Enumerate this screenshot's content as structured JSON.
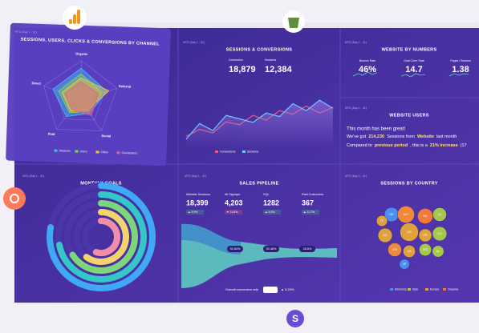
{
  "radar": {
    "title": "SESSIONS, USERS, CLICKS & CONVERSIONS BY CHANNEL",
    "period": "MTD (Day 1 - 31)",
    "axes": [
      "Organic",
      "Referral",
      "Social",
      "Paid",
      "Direct"
    ],
    "rlim": [
      0,
      100
    ],
    "series": [
      {
        "name": "Sessions",
        "color": "#3ec1f3",
        "values": [
          80,
          72,
          45,
          58,
          75
        ]
      },
      {
        "name": "Users",
        "color": "#7ed957",
        "values": [
          65,
          60,
          40,
          45,
          60
        ]
      },
      {
        "name": "Clicks",
        "color": "#f5c842",
        "values": [
          55,
          78,
          35,
          40,
          50
        ]
      },
      {
        "name": "Conversions",
        "color": "#ef5b7a",
        "values": [
          45,
          50,
          52,
          35,
          42
        ]
      }
    ]
  },
  "sessions": {
    "title": "SESSIONS & CONVERSIONS",
    "period": "MTD (Day 1 - 31)",
    "kpis": [
      {
        "label": "Conversion",
        "value": "18,879"
      },
      {
        "label": "Sessions",
        "value": "12,384"
      }
    ],
    "ylim": [
      0,
      100
    ],
    "series": [
      {
        "name": "Conversions",
        "color": "#ef5b7a",
        "values": [
          20,
          32,
          26,
          45,
          40,
          56,
          48,
          64,
          58,
          72,
          60,
          70
        ]
      },
      {
        "name": "Sessions",
        "color": "#6ec6ff",
        "values": [
          15,
          42,
          30,
          56,
          50,
          44,
          60,
          54,
          76,
          64,
          82,
          68
        ]
      }
    ]
  },
  "numbers": {
    "title": "WEBSITE BY NUMBERS",
    "period": "MTD (Day 1 - 31)",
    "items": [
      {
        "label": "Bounce Rate",
        "value": "46%"
      },
      {
        "label": "Goal Conv. Rate",
        "value": "14.7"
      },
      {
        "label": "Pages / Session",
        "value": "1.38"
      }
    ]
  },
  "users": {
    "title": "WEBSITE USERS",
    "period": "MTD (Day 1 - 31)",
    "line1": "This month has been great!",
    "line2": [
      "We've got",
      "214,230",
      "Sessions from",
      "Website",
      "last month"
    ],
    "line3": [
      "Compared to",
      "previous period",
      ", this is a",
      "21% increase",
      "(17"
    ]
  },
  "goals": {
    "title": "MONTHLY GOALS",
    "period": "MTD (Day 1 - 31)",
    "rlim": [
      0,
      100
    ],
    "rings": [
      {
        "color": "#3fa9f5",
        "value": 78
      },
      {
        "color": "#35c6c9",
        "value": 72
      },
      {
        "color": "#7ed67a",
        "value": 66
      },
      {
        "color": "#f3d36b",
        "value": 60
      },
      {
        "color": "#f08fa8",
        "value": 55
      }
    ]
  },
  "pipeline": {
    "title": "SALES PIPELINE",
    "period": "MTD (Day 1 - 31)",
    "stages": [
      {
        "label": "Website Sessions",
        "value": "18,399",
        "change": "▲ 5.9%",
        "color": "#4cd964"
      },
      {
        "label": "All Signups",
        "value": "4,203",
        "change": "▼ 21.8%",
        "color": "#ff5a5a"
      },
      {
        "label": "SQL",
        "value": "1282",
        "change": "▲ 9.3%",
        "color": "#4cd964"
      },
      {
        "label": "Paid Customers",
        "value": "367",
        "change": "▲ 11.7%",
        "color": "#4cd964"
      }
    ],
    "rates": [
      "32.84%",
      "30.48%",
      "28.6%"
    ],
    "overall_label": "Overall conversion rate",
    "overall": "1.99%",
    "overall_change": "▲ 5.29%"
  },
  "countries": {
    "title": "SESSIONS BY COUNTRY",
    "period": "MTD (Day 1 - 31)",
    "bubbles": [
      {
        "label": "US",
        "size": 100,
        "color": "#e0a23a"
      },
      {
        "label": "DE",
        "size": 60,
        "color": "#4a8ff0"
      },
      {
        "label": "MY",
        "size": 85,
        "color": "#f08a3a"
      },
      {
        "label": "NZ",
        "size": 70,
        "color": "#f07a3a"
      },
      {
        "label": "LU",
        "size": 55,
        "color": "#a6c84a"
      },
      {
        "label": "AU",
        "size": 60,
        "color": "#e0a23a"
      },
      {
        "label": "FR",
        "size": 50,
        "color": "#e0a23a"
      },
      {
        "label": "CA",
        "size": 60,
        "color": "#a6c84a"
      },
      {
        "label": "CN",
        "size": 55,
        "color": "#f08a3a"
      },
      {
        "label": "ZA",
        "size": 45,
        "color": "#e0a23a"
      },
      {
        "label": "NL",
        "size": 40,
        "color": "#a6c84a"
      },
      {
        "label": "IT",
        "size": 35,
        "color": "#e0a23a"
      },
      {
        "label": "ES",
        "size": 45,
        "color": "#a6c84a"
      },
      {
        "label": "JP",
        "size": 30,
        "color": "#4a8ff0"
      }
    ],
    "legend": [
      {
        "name": "Americas",
        "color": "#4a8ff0"
      },
      {
        "name": "Asia",
        "color": "#a6c84a"
      },
      {
        "name": "Europe",
        "color": "#e0a23a"
      },
      {
        "name": "Oceania",
        "color": "#f07a3a"
      }
    ]
  }
}
